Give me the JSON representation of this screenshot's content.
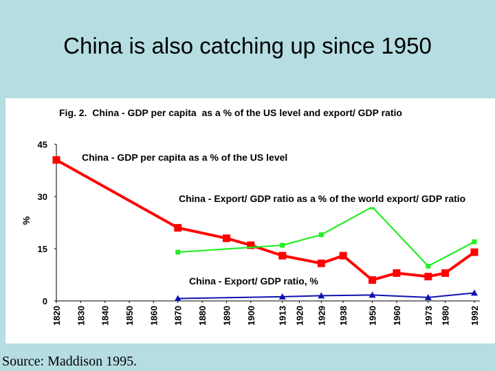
{
  "slide": {
    "title": "China is also catching up since 1950",
    "source": "Source:  Maddison 1995."
  },
  "chart_data": {
    "type": "line",
    "title": "Fig. 2.  China - GDP per capita  as a % of the US level and export/ GDP ratio",
    "ylabel": "%",
    "xlabel": "",
    "ylim": [
      0,
      45
    ],
    "yticks": [
      0,
      15,
      30,
      45
    ],
    "xlim": [
      1820,
      1992
    ],
    "xticks": [
      "1820",
      "1830",
      "1840",
      "1850",
      "1860",
      "1870",
      "1880",
      "1890",
      "1900",
      "1913",
      "1920",
      "1929",
      "1938",
      "1950",
      "1960",
      "1973",
      "1980",
      "1992"
    ],
    "series": [
      {
        "name": "China - GDP per capita as a % of the US level",
        "color": "#ff0000",
        "marker": "square",
        "x": [
          "1820",
          "1870",
          "1890",
          "1900",
          "1913",
          "1929",
          "1938",
          "1950",
          "1960",
          "1973",
          "1980",
          "1992"
        ],
        "values": [
          40.5,
          21,
          18,
          16,
          13,
          10.8,
          13,
          6,
          8,
          7,
          8,
          14
        ]
      },
      {
        "name": "China - Export/ GDP ratio as a % of the world export/ GDP ratio",
        "color": "#22ee22",
        "marker": "square",
        "x": [
          "1870",
          "1913",
          "1929",
          "1950",
          "1973",
          "1992"
        ],
        "values": [
          14,
          16,
          19,
          27,
          10,
          17
        ]
      },
      {
        "name": "China - Export/ GDP ratio, %",
        "color": "#1010b0",
        "marker": "triangle",
        "x": [
          "1870",
          "1913",
          "1929",
          "1950",
          "1973",
          "1992"
        ],
        "values": [
          0.7,
          1.2,
          1.5,
          1.7,
          1.0,
          2.3
        ]
      }
    ]
  }
}
